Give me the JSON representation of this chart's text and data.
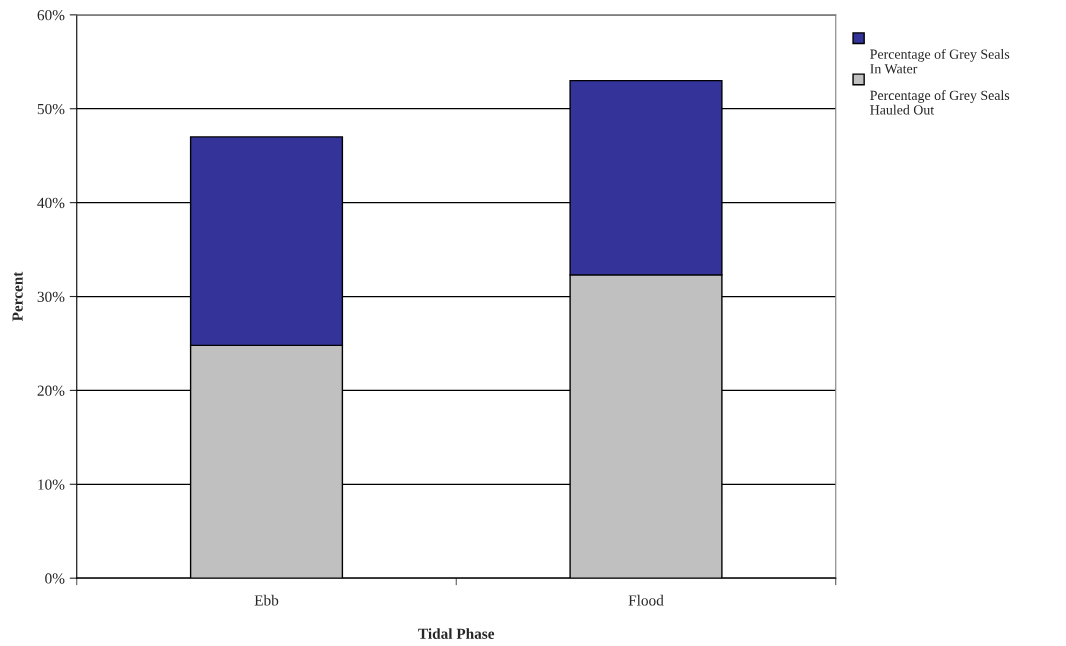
{
  "chart_data": {
    "type": "bar",
    "xlabel": "Tidal Phase",
    "ylabel": "Percent",
    "categories": [
      "Ebb",
      "Flood"
    ],
    "stacked": true,
    "series": [
      {
        "name": "Percentage of Grey Seals Hauled Out",
        "color": "#c0c0c0",
        "values": [
          24.8,
          32.3
        ]
      },
      {
        "name": "Percentage of Grey Seals In Water",
        "color": "#333399",
        "values": [
          22.2,
          20.7
        ]
      }
    ],
    "ylim": [
      0,
      60
    ],
    "yticks": [
      {
        "value": 0,
        "label": "0%"
      },
      {
        "value": 10,
        "label": "10%"
      },
      {
        "value": 20,
        "label": "20%"
      },
      {
        "value": 30,
        "label": "30%"
      },
      {
        "value": 40,
        "label": "40%"
      },
      {
        "value": 50,
        "label": "50%"
      },
      {
        "value": 60,
        "label": "60%"
      }
    ],
    "grid": "y",
    "legend": "top right"
  }
}
